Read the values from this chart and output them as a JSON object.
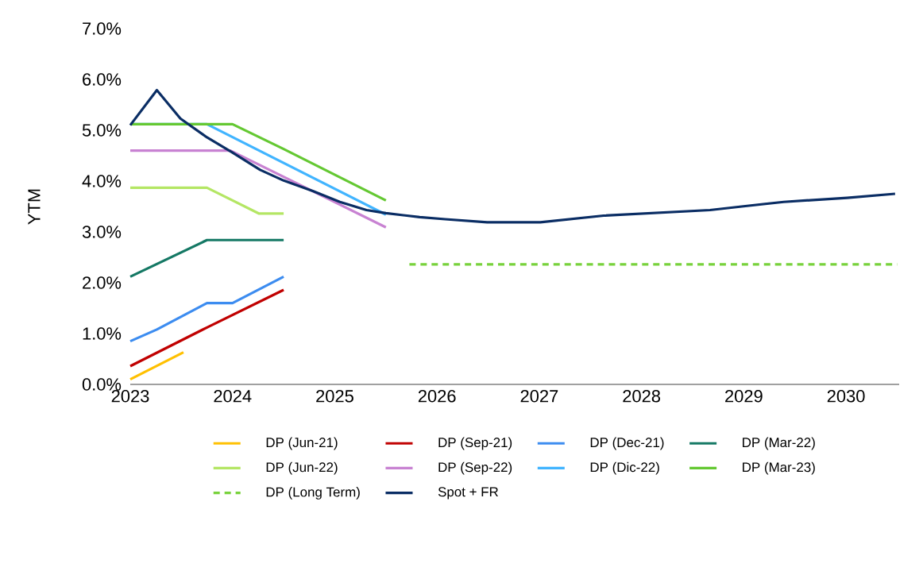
{
  "chart_data": {
    "type": "line",
    "ylabel": "YTM",
    "xlim": [
      2023,
      2030.52
    ],
    "xticks": [
      2023,
      2024,
      2025,
      2026,
      2027,
      2028,
      2029,
      2030
    ],
    "ylim": [
      0,
      7
    ],
    "yticks": [
      {
        "value": 0,
        "label": "0.0%"
      },
      {
        "value": 1,
        "label": "1.0%"
      },
      {
        "value": 2,
        "label": "2.0%"
      },
      {
        "value": 3,
        "label": "3.0%"
      },
      {
        "value": 4,
        "label": "4.0%"
      },
      {
        "value": 5,
        "label": "5.0%"
      },
      {
        "value": 6,
        "label": "6.0%"
      },
      {
        "value": 7,
        "label": "7.0%"
      }
    ],
    "grid": false,
    "legend": "bottom",
    "series": [
      {
        "name": "DP (Jun-21)",
        "color": "#ffc000",
        "x": [
          2023,
          2023.52
        ],
        "values": [
          0.1,
          0.63
        ]
      },
      {
        "name": "DP (Sep-21)",
        "color": "#c00000",
        "x": [
          2023,
          2023.75,
          2024.5
        ],
        "values": [
          0.36,
          1.12,
          1.86
        ]
      },
      {
        "name": "DP (Dec-21)",
        "color": "#3c8cf0",
        "x": [
          2023,
          2023.26,
          2023.75,
          2024.0,
          2024.5
        ],
        "values": [
          0.85,
          1.08,
          1.6,
          1.6,
          2.12
        ]
      },
      {
        "name": "DP (Mar-22)",
        "color": "#147864",
        "x": [
          2023,
          2023.75,
          2024.5
        ],
        "values": [
          2.12,
          2.84,
          2.84
        ]
      },
      {
        "name": "DP (Jun-22)",
        "color": "#b4e664",
        "x": [
          2023,
          2023.75,
          2024.26,
          2024.5
        ],
        "values": [
          3.87,
          3.87,
          3.36,
          3.36
        ]
      },
      {
        "name": "DP (Sep-22)",
        "color": "#c882d2",
        "x": [
          2023,
          2023.98,
          2025.5
        ],
        "values": [
          4.6,
          4.6,
          3.09
        ]
      },
      {
        "name": "DP (Dic-22)",
        "color": "#41b4ff",
        "x": [
          2023,
          2023.75,
          2025.5
        ],
        "values": [
          5.12,
          5.12,
          3.34
        ]
      },
      {
        "name": "DP (Mar-23)",
        "color": "#64c832",
        "x": [
          2023,
          2024.0,
          2024.5,
          2025.5
        ],
        "values": [
          5.12,
          5.12,
          4.63,
          3.62
        ]
      },
      {
        "name": "DP (Long Term)",
        "color": "#78d23c",
        "line_style": "dashed",
        "x": [
          2025.73,
          2030.5
        ],
        "values": [
          2.36,
          2.36
        ]
      },
      {
        "name": "Spot + FR",
        "color": "#0a2d64",
        "x": [
          2023,
          2023.26,
          2023.49,
          2023.75,
          2024.0,
          2024.27,
          2024.5,
          2024.79,
          2025.05,
          2025.31,
          2025.5,
          2025.83,
          2026.08,
          2026.49,
          2027.01,
          2027.63,
          2028.67,
          2028.98,
          2029.39,
          2030.01,
          2030.48
        ],
        "values": [
          5.1,
          5.79,
          5.23,
          4.86,
          4.56,
          4.22,
          4.01,
          3.8,
          3.59,
          3.43,
          3.37,
          3.29,
          3.25,
          3.19,
          3.19,
          3.32,
          3.43,
          3.5,
          3.59,
          3.67,
          3.75
        ]
      }
    ]
  }
}
